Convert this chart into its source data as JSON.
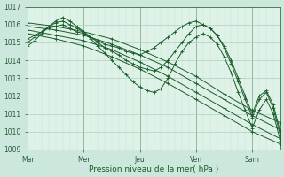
{
  "background_color": "#cce8dc",
  "plot_bg_color": "#dff2e8",
  "grid_color_major": "#b0cfc0",
  "grid_color_minor": "#cce0d4",
  "line_color": "#1a5c2a",
  "marker_color": "#1a5c2a",
  "xlabel_color": "#1a5c2a",
  "tick_color": "#2a5c3a",
  "xlabel": "Pression niveau de la mer( hPa )",
  "ymin": 1009,
  "ymax": 1017,
  "yticks": [
    1009,
    1010,
    1011,
    1012,
    1013,
    1014,
    1015,
    1016,
    1017
  ],
  "x_day_labels": [
    "Mar",
    "Mer",
    "Jeu",
    "Ven",
    "Sam"
  ],
  "x_day_positions": [
    0,
    24,
    48,
    72,
    96
  ],
  "total_hours": 108,
  "lines": [
    {
      "x": [
        0,
        12,
        24,
        36,
        48,
        60,
        72,
        84,
        96,
        108
      ],
      "y": [
        1015.5,
        1015.2,
        1014.8,
        1014.2,
        1013.5,
        1012.7,
        1011.8,
        1010.9,
        1010.0,
        1009.3
      ]
    },
    {
      "x": [
        0,
        12,
        24,
        36,
        48,
        60,
        72,
        84,
        96,
        108
      ],
      "y": [
        1015.7,
        1015.4,
        1015.1,
        1014.6,
        1013.9,
        1013.1,
        1012.2,
        1011.3,
        1010.4,
        1009.6
      ]
    },
    {
      "x": [
        0,
        12,
        24,
        36,
        48,
        60,
        72,
        84,
        96,
        108
      ],
      "y": [
        1015.9,
        1015.7,
        1015.4,
        1014.9,
        1014.3,
        1013.6,
        1012.7,
        1011.8,
        1010.9,
        1010.1
      ]
    },
    {
      "x": [
        0,
        12,
        24,
        36,
        48,
        60,
        72,
        84,
        96,
        108
      ],
      "y": [
        1016.1,
        1015.9,
        1015.6,
        1015.2,
        1014.6,
        1013.9,
        1013.1,
        1012.1,
        1011.2,
        1010.5
      ]
    },
    {
      "x": [
        0,
        3,
        6,
        9,
        12,
        15,
        18,
        21,
        24,
        27,
        30,
        33,
        36,
        39,
        42,
        45,
        48,
        51,
        54,
        57,
        60,
        63,
        66,
        69,
        72,
        75,
        78,
        81,
        84,
        87,
        90,
        93,
        96,
        99,
        102,
        105,
        108
      ],
      "y": [
        1015.2,
        1015.4,
        1015.6,
        1015.8,
        1015.9,
        1016.0,
        1015.8,
        1015.6,
        1015.5,
        1015.3,
        1015.1,
        1014.9,
        1014.8,
        1014.7,
        1014.5,
        1014.4,
        1014.3,
        1014.5,
        1014.7,
        1015.0,
        1015.3,
        1015.6,
        1015.9,
        1016.1,
        1016.2,
        1016.0,
        1015.8,
        1015.4,
        1014.8,
        1014.0,
        1013.0,
        1012.0,
        1011.0,
        1012.0,
        1012.3,
        1011.5,
        1010.0
      ]
    },
    {
      "x": [
        0,
        3,
        6,
        9,
        12,
        15,
        18,
        21,
        24,
        27,
        30,
        33,
        36,
        39,
        42,
        45,
        48,
        51,
        54,
        57,
        60,
        63,
        66,
        69,
        72,
        75,
        78,
        81,
        84,
        87,
        90,
        93,
        96,
        99,
        102,
        105,
        108
      ],
      "y": [
        1015.0,
        1015.3,
        1015.6,
        1015.9,
        1016.1,
        1016.2,
        1016.0,
        1015.8,
        1015.6,
        1015.3,
        1015.0,
        1014.7,
        1014.5,
        1014.3,
        1014.0,
        1013.8,
        1013.6,
        1013.5,
        1013.4,
        1013.6,
        1014.0,
        1014.5,
        1015.0,
        1015.5,
        1015.9,
        1016.0,
        1015.8,
        1015.4,
        1014.7,
        1013.8,
        1012.8,
        1011.8,
        1010.8,
        1011.8,
        1012.2,
        1011.3,
        1009.8
      ]
    },
    {
      "x": [
        0,
        3,
        6,
        9,
        12,
        15,
        18,
        21,
        24,
        27,
        30,
        33,
        36,
        39,
        42,
        45,
        48,
        51,
        54,
        57,
        60,
        63,
        66,
        69,
        72,
        75,
        78,
        81,
        84,
        87,
        90,
        93,
        96,
        99,
        102,
        105,
        108
      ],
      "y": [
        1014.8,
        1015.1,
        1015.5,
        1015.9,
        1016.2,
        1016.4,
        1016.2,
        1015.9,
        1015.6,
        1015.2,
        1014.8,
        1014.4,
        1014.0,
        1013.6,
        1013.2,
        1012.8,
        1012.5,
        1012.3,
        1012.2,
        1012.4,
        1013.0,
        1013.8,
        1014.5,
        1015.0,
        1015.3,
        1015.5,
        1015.3,
        1014.9,
        1014.2,
        1013.3,
        1012.2,
        1011.2,
        1010.2,
        1011.2,
        1011.8,
        1011.0,
        1009.5
      ]
    }
  ]
}
